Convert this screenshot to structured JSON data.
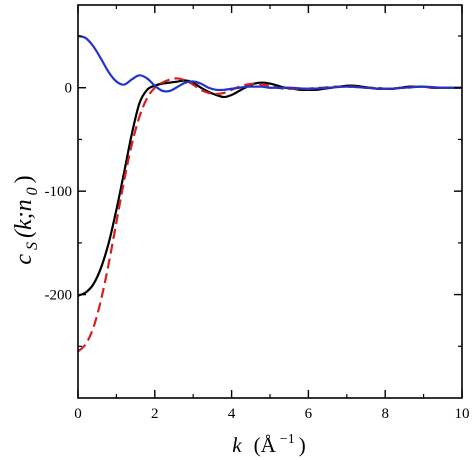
{
  "chart_data": {
    "type": "line",
    "title": "",
    "xlabel": {
      "main": "k",
      "unit_open": "(Å",
      "unit_exp": "−1",
      "unit_close": ")"
    },
    "ylabel": {
      "main": "c",
      "sub": "S",
      "args": "(k;n",
      "args_sub": "0",
      "close": ")"
    },
    "xlim": [
      0,
      10
    ],
    "ylim": [
      -300,
      80
    ],
    "x_ticks": [
      0,
      2,
      4,
      6,
      8,
      10
    ],
    "y_ticks": [
      0,
      -100,
      -200
    ],
    "x_tick_labels": [
      "0",
      "2",
      "4",
      "6",
      "8",
      "10"
    ],
    "y_tick_labels": [
      "0",
      "-100",
      "-200"
    ],
    "grid": false,
    "legend": "none",
    "series": [
      {
        "color": "#000000",
        "style": "solid",
        "x": [
          0,
          0.2,
          0.4,
          0.6,
          0.8,
          1.0,
          1.2,
          1.4,
          1.6,
          1.8,
          2.0,
          2.2,
          2.4,
          2.6,
          2.8,
          3.0,
          3.2,
          3.4,
          3.6,
          3.8,
          4.0,
          4.2,
          4.4,
          4.6,
          4.8,
          5.0,
          5.2,
          5.4,
          5.6,
          5.8,
          6.0,
          6.2,
          6.4,
          6.6,
          6.8,
          7.0,
          7.2,
          7.4,
          7.6,
          7.8,
          8.0,
          8.2,
          8.4,
          8.6,
          8.8,
          9.0,
          9.2,
          9.4,
          9.6,
          9.8,
          10.0
        ],
        "y": [
          -201,
          -198,
          -190,
          -174,
          -150,
          -118,
          -82,
          -45,
          -15,
          -2,
          2,
          4,
          5,
          6,
          7,
          5,
          0,
          -4,
          -7,
          -9,
          -7,
          -3,
          1,
          4,
          5,
          4,
          2,
          0,
          -1,
          -2,
          -2,
          -2,
          -1,
          0,
          1,
          2,
          2,
          1,
          0,
          -1,
          -1,
          -1,
          0,
          1,
          1,
          1,
          0,
          0,
          0,
          0,
          0
        ]
      },
      {
        "color": "#d42020",
        "style": "dashed",
        "x": [
          0,
          0.2,
          0.4,
          0.6,
          0.8,
          1.0,
          1.2,
          1.4,
          1.6,
          1.8,
          2.0,
          2.2,
          2.4,
          2.6,
          2.8,
          3.0,
          3.2,
          3.4,
          3.6,
          3.8,
          4.0,
          4.2,
          4.4,
          4.6,
          4.8,
          5.0,
          5.2,
          5.4,
          5.6,
          5.8,
          6.0,
          6.2,
          6.4,
          6.6,
          6.8,
          7.0,
          7.2,
          7.4,
          7.6,
          7.8,
          8.0,
          8.2,
          8.4,
          8.6,
          8.8,
          9.0,
          9.2,
          9.4,
          9.6,
          9.8,
          10.0
        ],
        "y": [
          -255,
          -248,
          -232,
          -205,
          -170,
          -130,
          -90,
          -55,
          -28,
          -10,
          0,
          5,
          8,
          9,
          7,
          3,
          -2,
          -5,
          -6,
          -5,
          -2,
          1,
          3,
          4,
          3,
          2,
          0,
          -1,
          -1,
          -1,
          -1,
          0,
          0,
          1,
          1,
          1,
          1,
          0,
          0,
          0,
          -1,
          -1,
          0,
          0,
          1,
          1,
          0,
          0,
          0,
          0,
          0
        ]
      },
      {
        "color": "#2233cc",
        "style": "solid",
        "x": [
          0,
          0.2,
          0.4,
          0.6,
          0.8,
          1.0,
          1.2,
          1.4,
          1.6,
          1.8,
          2.0,
          2.2,
          2.4,
          2.6,
          2.8,
          3.0,
          3.2,
          3.4,
          3.6,
          3.8,
          4.0,
          4.2,
          4.4,
          4.6,
          4.8,
          5.0,
          5.5,
          6.0,
          6.5,
          7.0,
          7.5,
          8.0,
          8.5,
          9.0,
          9.5,
          10.0
        ],
        "y": [
          50,
          48,
          40,
          28,
          15,
          6,
          3,
          8,
          12,
          9,
          2,
          -3,
          -3,
          1,
          5,
          6,
          4,
          0,
          -2,
          -2,
          -1,
          0,
          1,
          1,
          1,
          0,
          0,
          -1,
          0,
          1,
          0,
          -1,
          0,
          1,
          0,
          0
        ]
      }
    ]
  }
}
